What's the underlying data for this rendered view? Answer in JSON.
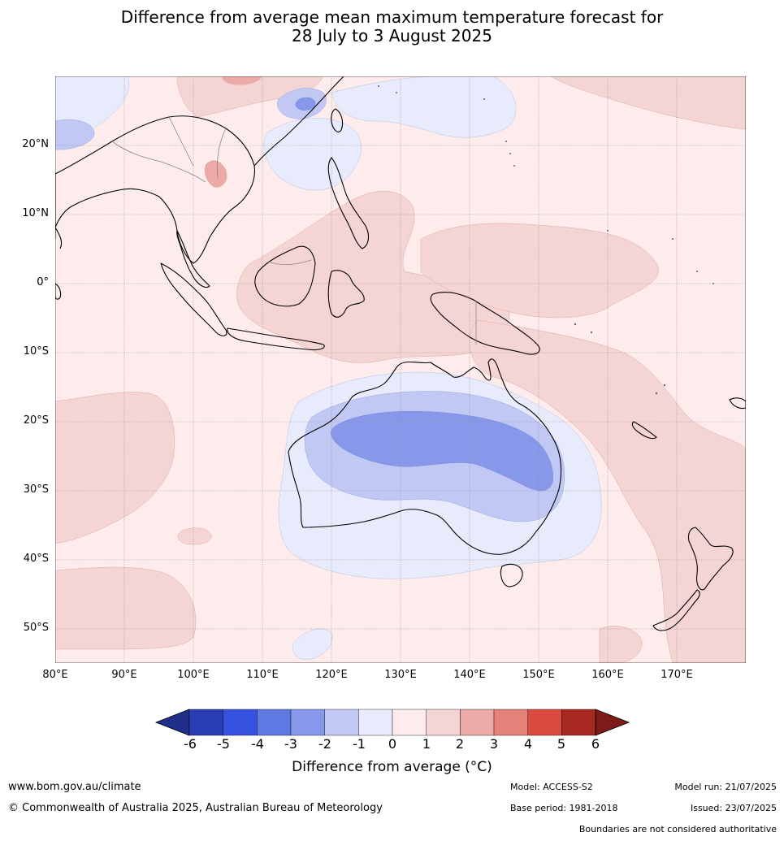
{
  "title": {
    "line1": "Difference from average mean maximum temperature forecast for",
    "line2": "28 July to 3 August 2025"
  },
  "map": {
    "lon_range_deg": [
      80,
      180
    ],
    "lat_range_deg": [
      -55,
      30
    ],
    "lat_labels": [
      "20°N",
      "10°N",
      "0°",
      "10°S",
      "20°S",
      "30°S",
      "40°S",
      "50°S"
    ],
    "lat_values": [
      20,
      10,
      0,
      -10,
      -20,
      -30,
      -40,
      -50
    ],
    "lon_labels": [
      "80°E",
      "90°E",
      "100°E",
      "110°E",
      "120°E",
      "130°E",
      "140°E",
      "150°E",
      "160°E",
      "170°E"
    ],
    "lon_values": [
      80,
      90,
      100,
      110,
      120,
      130,
      140,
      150,
      160,
      170
    ]
  },
  "colorbar": {
    "ticks": [
      "-6",
      "-5",
      "-4",
      "-3",
      "-2",
      "-1",
      "0",
      "1",
      "2",
      "3",
      "4",
      "5",
      "6"
    ],
    "colors": [
      "#1f2f8a",
      "#2a3db5",
      "#3553e0",
      "#5f79e2",
      "#8798ea",
      "#c0c8f3",
      "#e8ebfb",
      "#fdeceb",
      "#f5d5d3",
      "#ebaaa5",
      "#e48179",
      "#d94b3f",
      "#a8291f",
      "#7c1b17"
    ],
    "label": "Difference from average (°C)"
  },
  "footer": {
    "website": "www.bom.gov.au/climate",
    "copyright": "© Commonwealth of Australia 2025, Australian Bureau of Meteorology",
    "model": "Model: ACCESS-S2",
    "model_run": "Model run: 21/07/2025",
    "base_period": "Base period: 1981-2018",
    "issued": "Issued: 23/07/2025",
    "disclaimer": "Boundaries are not considered authoritative"
  }
}
